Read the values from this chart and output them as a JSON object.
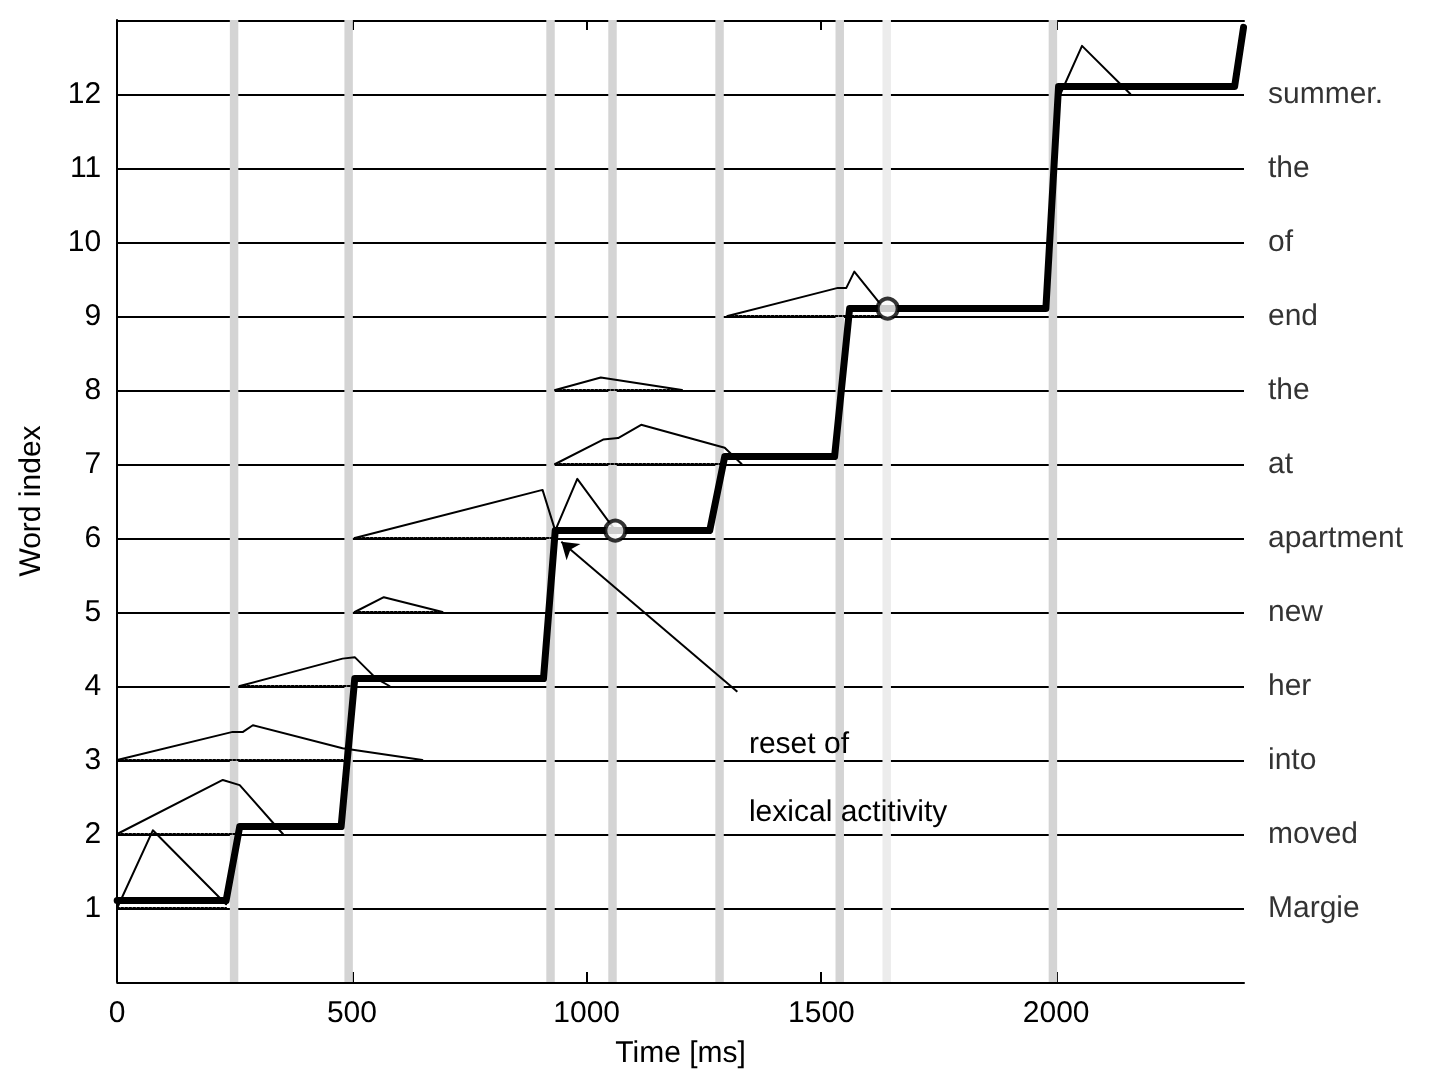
{
  "chart_data": {
    "type": "line",
    "xlabel": "Time [ms]",
    "ylabel": "Word index",
    "xlim": [
      0,
      2400
    ],
    "xticks": [
      0,
      500,
      1000,
      1500,
      2000
    ],
    "ylim": [
      0,
      13
    ],
    "yticks": [
      1,
      2,
      3,
      4,
      5,
      6,
      7,
      8,
      9,
      10,
      11,
      12
    ],
    "grid": "y",
    "series": [
      {
        "color": "#000000",
        "x": [
          0,
          232,
          261,
          477,
          506,
          908,
          933,
          1262,
          1294,
          1528,
          1560,
          1978,
          2005,
          2380,
          2399
        ],
        "values": [
          1.1,
          1.1,
          2.1,
          2.1,
          4.1,
          4.1,
          6.1,
          6.1,
          7.1,
          7.1,
          9.1,
          9.1,
          12.1,
          12.1,
          12.9
        ]
      },
      {
        "color": "#000000",
        "x": [
          0,
          76,
          232
        ],
        "values": [
          1,
          2.05,
          1.05
        ]
      },
      {
        "color": "#000000",
        "x": [
          0,
          225,
          261,
          353
        ],
        "values": [
          2,
          2.73,
          2.66,
          2
        ]
      },
      {
        "color": "#000000",
        "x": [
          0,
          246,
          268,
          289,
          480,
          650
        ],
        "values": [
          3,
          3.38,
          3.38,
          3.47,
          3.16,
          3
        ]
      },
      {
        "color": "#000000",
        "x": [
          261,
          480,
          506,
          552,
          580
        ],
        "values": [
          4,
          4.37,
          4.39,
          4.1,
          4
        ]
      },
      {
        "color": "#000000",
        "x": [
          506,
          568,
          693
        ],
        "values": [
          5,
          5.2,
          5
        ]
      },
      {
        "color": "#000000",
        "x": [
          506,
          906,
          933,
          980,
          1061
        ],
        "values": [
          6,
          6.65,
          6.1,
          6.8,
          6.1
        ]
      },
      {
        "color": "#000000",
        "x": [
          933,
          1035,
          1067,
          1116,
          1294,
          1330
        ],
        "values": [
          7,
          7.33,
          7.35,
          7.53,
          7.22,
          7
        ]
      },
      {
        "color": "#000000",
        "x": [
          933,
          1030,
          1203
        ],
        "values": [
          8,
          8.17,
          8
        ]
      },
      {
        "color": "#000000",
        "x": [
          1300,
          1535,
          1553,
          1570,
          1627
        ],
        "values": [
          9,
          9.38,
          9.38,
          9.6,
          9.15
        ]
      },
      {
        "color": "#000000",
        "x": [
          2009,
          2055,
          2158
        ],
        "values": [
          12,
          12.65,
          12
        ]
      },
      {
        "color": "#000000",
        "line_style": "dotted",
        "x": [
          0,
          232,
          null,
          0,
          261,
          null,
          0,
          480,
          null,
          261,
          506,
          null,
          506,
          693,
          null,
          506,
          933,
          null,
          933,
          1294,
          null,
          933,
          1203,
          null,
          1300,
          1630
        ],
        "values": [
          1,
          1,
          null,
          2,
          2,
          null,
          3,
          3,
          null,
          4,
          4,
          null,
          5,
          5,
          null,
          6,
          6,
          null,
          7,
          7,
          null,
          8,
          8,
          null,
          9,
          9
        ]
      },
      {
        "type": "scatter",
        "color": "#000000",
        "marker": "circle",
        "x": [
          1061,
          1641
        ],
        "values": [
          6.1,
          9.1
        ]
      }
    ],
    "bands": [
      {
        "axis": "x",
        "from": 240,
        "to": 258,
        "color": "#d4d4d4"
      },
      {
        "axis": "x",
        "from": 484,
        "to": 502,
        "color": "#d4d4d4"
      },
      {
        "axis": "x",
        "from": 914,
        "to": 932,
        "color": "#d4d4d4"
      },
      {
        "axis": "x",
        "from": 1046,
        "to": 1064,
        "color": "#d4d4d4"
      },
      {
        "axis": "x",
        "from": 1274,
        "to": 1292,
        "color": "#d4d4d4"
      },
      {
        "axis": "x",
        "from": 1530,
        "to": 1548,
        "color": "#d4d4d4"
      },
      {
        "axis": "x",
        "from": 1630,
        "to": 1648,
        "color": "#ececec"
      },
      {
        "axis": "x",
        "from": 1984,
        "to": 2002,
        "color": "#d4d4d4"
      }
    ],
    "annotations": [
      {
        "text": "reset of lexical actitivity",
        "x": 946,
        "y": 5.95
      },
      "Margie",
      "moved",
      "into",
      "her",
      "new",
      "apartment",
      "at",
      "the",
      "end",
      "of",
      "the",
      "summer."
    ]
  }
}
